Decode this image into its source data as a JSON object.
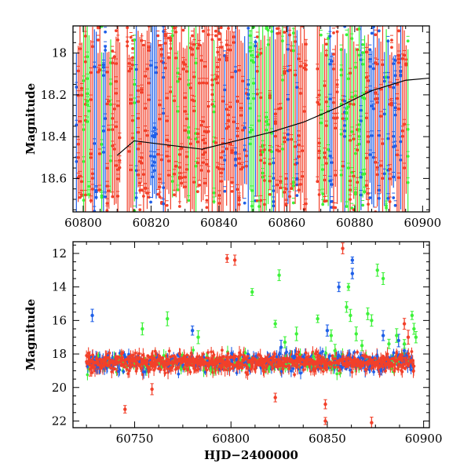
{
  "colors": {
    "red": "#f2402a",
    "blue": "#1f5fe8",
    "green": "#3ef23a",
    "curve": "#000000",
    "axis": "#000000"
  },
  "chart_data": [
    {
      "type": "scatter",
      "panel": "top",
      "xlabel": "",
      "ylabel": "Magnitude",
      "xlim": [
        60797,
        60902
      ],
      "ylim": [
        18.76,
        17.87
      ],
      "y_inverted": true,
      "x_ticks": [
        60800,
        60820,
        60840,
        60860,
        60880,
        60900
      ],
      "y_ticks": [
        18,
        18.2,
        18.4,
        18.6
      ],
      "error_bars": true,
      "series": [
        {
          "color": "red",
          "description": "bulk light-curve points with large error bars filling the zoomed window"
        },
        {
          "color": "blue"
        },
        {
          "color": "green"
        }
      ],
      "dense_columns": [
        {
          "x0": 60798,
          "x1": 60811,
          "green_share": 0.25,
          "blue_share": 0.2
        },
        {
          "x0": 60813,
          "x1": 60837,
          "green_share": 0.2,
          "blue_share": 0.2
        },
        {
          "x0": 60838,
          "x1": 60866,
          "green_share": 0.25,
          "blue_share": 0.25
        },
        {
          "x0": 60869,
          "x1": 60875,
          "green_share": 0.3,
          "blue_share": 0.2
        },
        {
          "x0": 60876,
          "x1": 60896,
          "green_share": 0.3,
          "blue_share": 0.3
        }
      ],
      "model_curve": [
        [
          60810,
          18.49
        ],
        [
          60815,
          18.42
        ],
        [
          60825,
          18.44
        ],
        [
          60835,
          18.46
        ],
        [
          60845,
          18.42
        ],
        [
          60855,
          18.38
        ],
        [
          60865,
          18.33
        ],
        [
          60875,
          18.26
        ],
        [
          60885,
          18.18
        ],
        [
          60895,
          18.13
        ],
        [
          60902,
          18.12
        ]
      ]
    },
    {
      "type": "scatter",
      "panel": "bottom",
      "xlabel": "HJD−2400000",
      "ylabel": "Magnitude",
      "xlim": [
        60718,
        60903
      ],
      "ylim": [
        22.4,
        11.3
      ],
      "y_inverted": true,
      "x_ticks": [
        60750,
        60800,
        60850,
        60900
      ],
      "y_ticks": [
        12,
        14,
        16,
        18,
        20,
        22
      ],
      "error_bars": true,
      "baseline": {
        "x_start": 60725,
        "x_end": 60895,
        "mag": 18.5,
        "scatter": 0.45
      },
      "series": [
        {
          "color": "red",
          "outliers": [
            [
              60798,
              12.3
            ],
            [
              60802,
              12.4
            ],
            [
              60858,
              11.7
            ],
            [
              60727,
              18.9
            ],
            [
              60759,
              20.1
            ],
            [
              60745,
              21.3
            ],
            [
              60823,
              20.6
            ],
            [
              60849,
              21.0
            ],
            [
              60849,
              22.0
            ],
            [
              60873,
              22.1
            ],
            [
              60890,
              16.2
            ],
            [
              60892,
              17.0
            ]
          ]
        },
        {
          "color": "blue",
          "outliers": [
            [
              60728,
              15.7
            ],
            [
              60780,
              16.6
            ],
            [
              60826,
              17.6
            ],
            [
              60850,
              16.6
            ],
            [
              60856,
              14.0
            ],
            [
              60863,
              12.4
            ],
            [
              60863,
              13.2
            ],
            [
              60879,
              16.9
            ],
            [
              60887,
              17.2
            ],
            [
              60890,
              17.8
            ]
          ]
        },
        {
          "color": "green",
          "outliers": [
            [
              60754,
              16.5
            ],
            [
              60767,
              15.9
            ],
            [
              60783,
              17.0
            ],
            [
              60811,
              14.3
            ],
            [
              60823,
              16.2
            ],
            [
              60825,
              13.3
            ],
            [
              60828,
              17.3
            ],
            [
              60834,
              16.8
            ],
            [
              60845,
              15.9
            ],
            [
              60852,
              16.9
            ],
            [
              60854,
              17.8
            ],
            [
              60860,
              15.2
            ],
            [
              60861,
              14.0
            ],
            [
              60862,
              15.7
            ],
            [
              60865,
              16.8
            ],
            [
              60868,
              17.5
            ],
            [
              60871,
              15.6
            ],
            [
              60873,
              16.0
            ],
            [
              60876,
              13.0
            ],
            [
              60879,
              13.5
            ],
            [
              60882,
              17.4
            ],
            [
              60886,
              16.9
            ],
            [
              60890,
              17.4
            ],
            [
              60894,
              15.7
            ],
            [
              60895,
              16.5
            ],
            [
              60896,
              17.0
            ]
          ]
        }
      ]
    }
  ]
}
